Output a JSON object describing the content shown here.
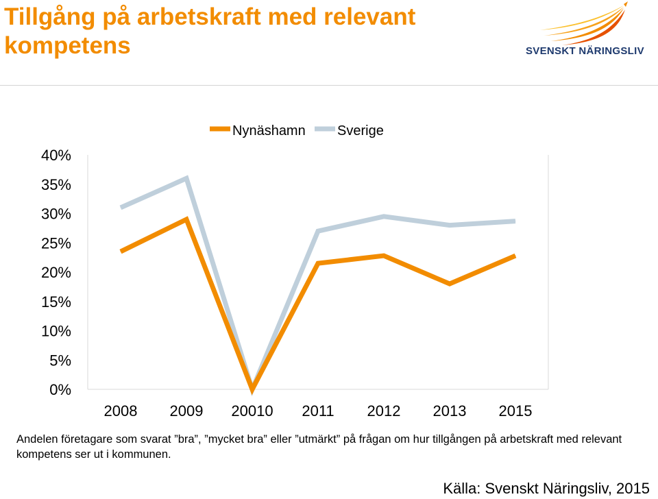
{
  "header": {
    "title": "Tillgång på arbetskraft med relevant kompetens",
    "logo_text": "SVENSKT NÄRINGSLIV"
  },
  "colors": {
    "title": "#F28C00",
    "nynashamn": "#F28C00",
    "sverige": "#BFCFDB",
    "logo_text": "#1E3A6E"
  },
  "chart_data": {
    "type": "line",
    "categories": [
      "2008",
      "2009",
      "20010",
      "2011",
      "2012",
      "2013",
      "2015"
    ],
    "series": [
      {
        "name": "Nynäshamn",
        "values": [
          0.235,
          0.29,
          0.0,
          0.215,
          0.228,
          0.18,
          0.228
        ]
      },
      {
        "name": "Sverige",
        "values": [
          0.31,
          0.36,
          0.0,
          0.27,
          0.295,
          0.28,
          0.287
        ]
      }
    ],
    "ylim": [
      0,
      0.4
    ],
    "y_ticks": [
      "0%",
      "5%",
      "10%",
      "15%",
      "20%",
      "25%",
      "30%",
      "35%",
      "40%"
    ],
    "legend_position": "top",
    "grid": false
  },
  "footnote": "Andelen företagare som svarat ”bra”, ”mycket bra” eller ”utmärkt” på frågan om hur tillgången på arbetskraft med relevant kompetens ser ut i kommunen.",
  "source": "Källa: Svenskt Näringsliv, 2015"
}
